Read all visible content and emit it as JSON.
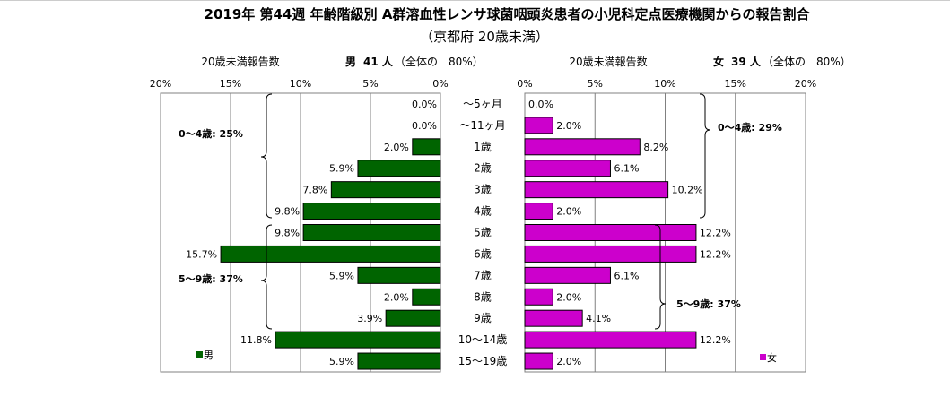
{
  "chart_data": {
    "type": "bar",
    "title": "2019年 第44週 年齢階級別 A群溶血性レンサ球菌咽頭炎患者の小児科定点医療機関からの報告割合",
    "subtitle": "（京都府 20歳未満）",
    "categories": [
      "～5ヶ月",
      "～11ヶ月",
      "1歳",
      "2歳",
      "3歳",
      "4歳",
      "5歳",
      "6歳",
      "7歳",
      "8歳",
      "9歳",
      "10～14歳",
      "15～19歳"
    ],
    "xlim": [
      0,
      20
    ],
    "ticks": [
      "0%",
      "5%",
      "10%",
      "15%",
      "20%"
    ],
    "grid": true,
    "series": [
      {
        "name": "男",
        "color": "#006400",
        "header_label": "20歳未満報告数",
        "header_sex": "男",
        "header_count": "41 人",
        "header_share": "（全体の　80%）",
        "values": [
          0.0,
          0.0,
          2.0,
          5.9,
          7.8,
          9.8,
          9.8,
          15.7,
          5.9,
          2.0,
          3.9,
          11.8,
          5.9
        ],
        "labels": [
          "0.0%",
          "0.0%",
          "2.0%",
          "5.9%",
          "7.8%",
          "9.8%",
          "9.8%",
          "15.7%",
          "5.9%",
          "2.0%",
          "3.9%",
          "11.8%",
          "5.9%"
        ],
        "groups": [
          {
            "label": "0～4歳: 25%"
          },
          {
            "label": "5～9歳: 37%"
          }
        ],
        "legend": "男"
      },
      {
        "name": "女",
        "color": "#CC00CC",
        "header_label": "20歳未満報告数",
        "header_sex": "女",
        "header_count": "39 人",
        "header_share": "（全体の　80%）",
        "values": [
          0.0,
          2.0,
          8.2,
          6.1,
          10.2,
          2.0,
          12.2,
          12.2,
          6.1,
          2.0,
          4.1,
          12.2,
          2.0
        ],
        "labels": [
          "0.0%",
          "2.0%",
          "8.2%",
          "6.1%",
          "10.2%",
          "2.0%",
          "12.2%",
          "12.2%",
          "6.1%",
          "2.0%",
          "4.1%",
          "12.2%",
          "2.0%"
        ],
        "groups": [
          {
            "label": "0～4歳: 29%"
          },
          {
            "label": "5～9歳: 37%"
          }
        ],
        "legend": "女"
      }
    ]
  }
}
